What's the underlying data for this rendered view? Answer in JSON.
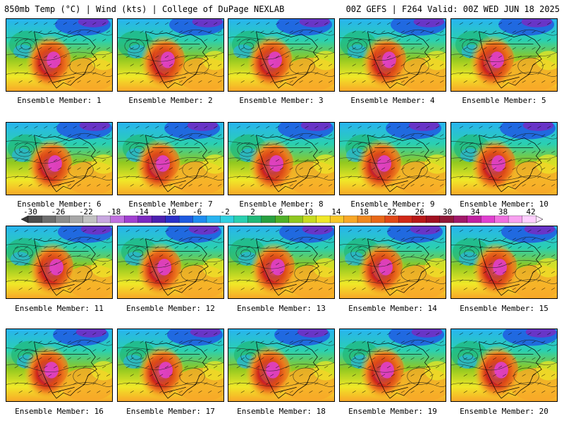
{
  "header": {
    "left": "850mb Temp (°C) | Wind (kts) | College of DuPage NEXLAB",
    "right": "00Z GEFS | F264 Valid: 00Z WED JUN 18 2025"
  },
  "panels": [
    {
      "label": "Ensemble Member: 1"
    },
    {
      "label": "Ensemble Member: 2"
    },
    {
      "label": "Ensemble Member: 3"
    },
    {
      "label": "Ensemble Member: 4"
    },
    {
      "label": "Ensemble Member: 5"
    },
    {
      "label": "Ensemble Member: 6"
    },
    {
      "label": "Ensemble Member: 7"
    },
    {
      "label": "Ensemble Member: 8"
    },
    {
      "label": "Ensemble Member: 9"
    },
    {
      "label": "Ensemble Member: 10"
    },
    {
      "label": "Ensemble Member: 11"
    },
    {
      "label": "Ensemble Member: 12"
    },
    {
      "label": "Ensemble Member: 13"
    },
    {
      "label": "Ensemble Member: 14"
    },
    {
      "label": "Ensemble Member: 15"
    },
    {
      "label": "Ensemble Member: 16"
    },
    {
      "label": "Ensemble Member: 17"
    },
    {
      "label": "Ensemble Member: 18"
    },
    {
      "label": "Ensemble Member: 19"
    },
    {
      "label": "Ensemble Member: 20"
    }
  ],
  "colorbar": {
    "ticks": [
      "-30",
      "-26",
      "-22",
      "-18",
      "-14",
      "-10",
      "-6",
      "-2",
      "2",
      "6",
      "10",
      "14",
      "18",
      "22",
      "26",
      "30",
      "34",
      "38",
      "42"
    ],
    "colors": [
      "#4d4d4d",
      "#6e6e6e",
      "#8c8c8c",
      "#a8a8a8",
      "#c2c2c2",
      "#c8a8e0",
      "#c070e0",
      "#a040d0",
      "#7a28c0",
      "#4b20b0",
      "#2a30c8",
      "#1e5ae0",
      "#1e8cf0",
      "#28b4f0",
      "#30d0e0",
      "#2ad0b0",
      "#20b878",
      "#28a040",
      "#50b028",
      "#90c820",
      "#c8dc20",
      "#f0e828",
      "#f8c828",
      "#f8a828",
      "#f08820",
      "#e86818",
      "#e04818",
      "#d02818",
      "#b81818",
      "#a01020",
      "#901838",
      "#a01868",
      "#c020a0",
      "#e040d0",
      "#f070e0",
      "#f8a0f0",
      "#ffd0ff"
    ]
  }
}
